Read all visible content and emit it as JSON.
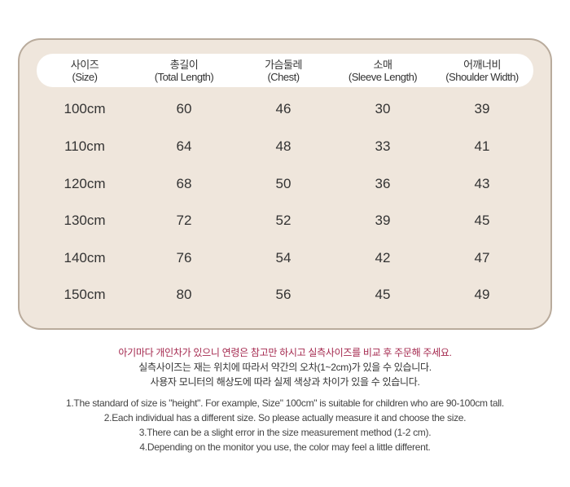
{
  "table": {
    "headers": [
      {
        "ko": "사이즈",
        "en": "(Size)"
      },
      {
        "ko": "총길이",
        "en": "(Total Length)"
      },
      {
        "ko": "가슴둘레",
        "en": "(Chest)"
      },
      {
        "ko": "소매",
        "en": "(Sleeve Length)"
      },
      {
        "ko": "어깨너비",
        "en": "(Shoulder Width)"
      }
    ],
    "rows": [
      [
        "100cm",
        "60",
        "46",
        "30",
        "39"
      ],
      [
        "110cm",
        "64",
        "48",
        "33",
        "41"
      ],
      [
        "120cm",
        "68",
        "50",
        "36",
        "43"
      ],
      [
        "130cm",
        "72",
        "52",
        "39",
        "45"
      ],
      [
        "140cm",
        "76",
        "54",
        "42",
        "47"
      ],
      [
        "150cm",
        "80",
        "56",
        "45",
        "49"
      ]
    ]
  },
  "notes_ko": [
    "아기마다 개인차가 있으니 연령은 참고만 하시고 실측사이즈를 비교 후 주문해 주세요.",
    "실측사이즈는 재는 위치에 따라서 약간의  오차(1~2cm)가 있을 수 있습니다.",
    "사용자 모니터의 해상도에 따라 실제 색상과 차이가 있을 수 있습니다."
  ],
  "notes_en": [
    "1.The standard of size is \"height\". For example,  Size\" 100cm\" is suitable for children who are 90-100cm tall.",
    "2.Each individual has a different size. So please actually measure it and choose the size.",
    "3.There can be a slight error in the size measurement method (1-2 cm).",
    "4.Depending on the monitor you use, the color may feel a little different."
  ],
  "colors": {
    "highlight": "#a4284e",
    "panel": "#efe6dc"
  }
}
